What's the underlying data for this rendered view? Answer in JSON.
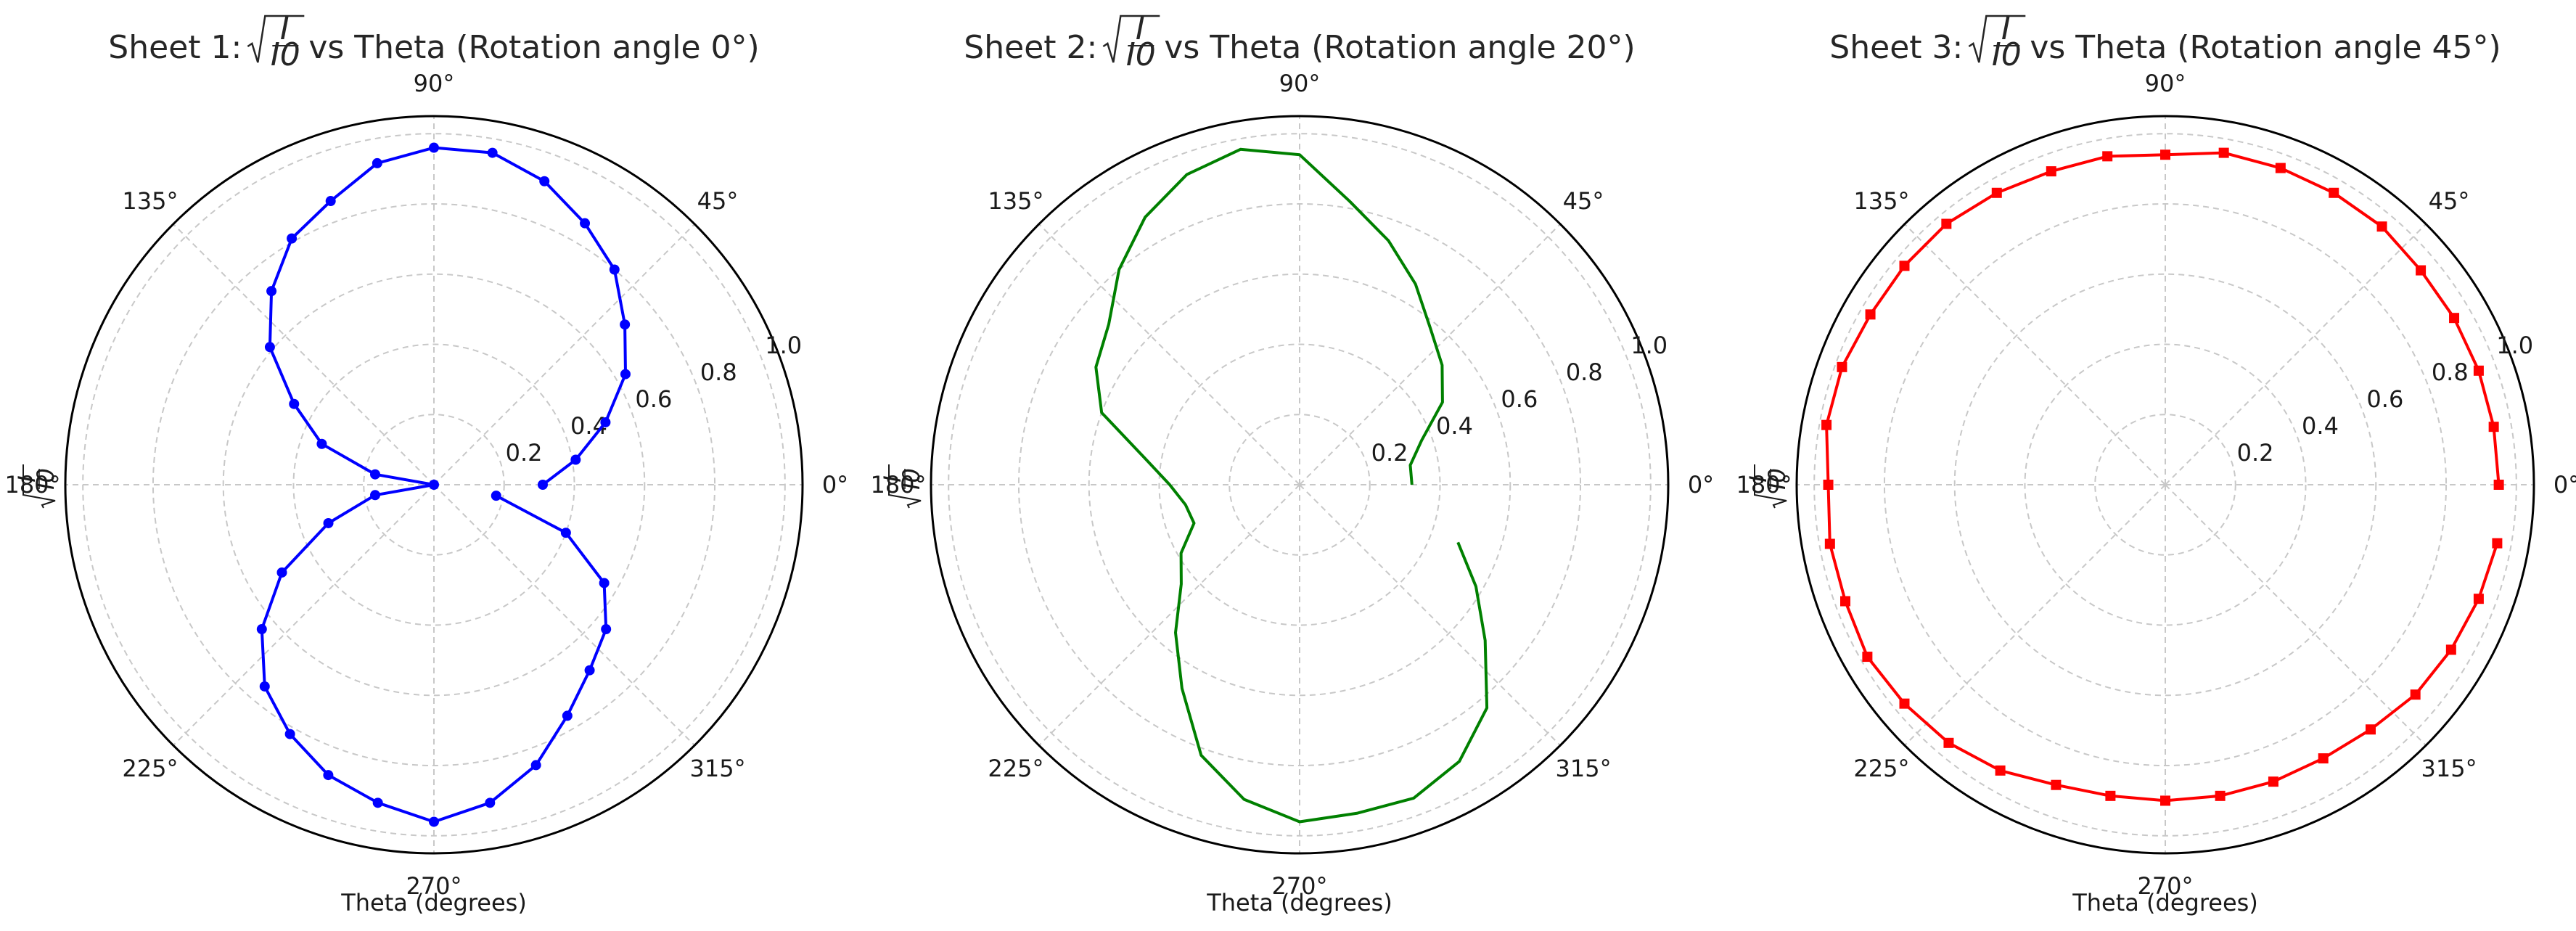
{
  "chart_data": [
    {
      "type": "line",
      "projection": "polar",
      "title_prefix": "Sheet 1: ",
      "title_suffix": " vs Theta (Rotation angle 0°)",
      "title_math": {
        "numerator": "I",
        "denominator": "I0"
      },
      "xlabel": "Theta (degrees)",
      "ylabel_math": {
        "numerator": "I",
        "denominator": "I0"
      },
      "theta_ticks": [
        "0°",
        "45°",
        "90°",
        "135°",
        "180°",
        "225°",
        "270°",
        "315°"
      ],
      "r_ticks": [
        "0.2",
        "0.4",
        "0.6",
        "0.8",
        "1.0"
      ],
      "r_range": [
        0,
        1.05
      ],
      "grid": true,
      "series": [
        {
          "color": "#0000ff",
          "marker": "circle",
          "theta_deg": [
            0,
            10,
            20,
            30,
            40,
            50,
            60,
            70,
            80,
            90,
            100,
            110,
            120,
            130,
            140,
            150,
            160,
            170,
            180,
            190,
            200,
            210,
            220,
            230,
            240,
            250,
            260,
            270,
            280,
            290,
            300,
            310,
            320,
            330,
            340,
            350
          ],
          "r": [
            0.31,
            0.41,
            0.52,
            0.63,
            0.71,
            0.8,
            0.86,
            0.92,
            0.96,
            0.96,
            0.93,
            0.86,
            0.81,
            0.72,
            0.61,
            0.46,
            0.34,
            0.17,
            0.0,
            0.17,
            0.32,
            0.5,
            0.64,
            0.75,
            0.82,
            0.88,
            0.92,
            0.96,
            0.92,
            0.85,
            0.76,
            0.69,
            0.64,
            0.56,
            0.4,
            0.18
          ]
        }
      ]
    },
    {
      "type": "line",
      "projection": "polar",
      "title_prefix": "Sheet 2: ",
      "title_suffix": " vs Theta (Rotation angle 20°)",
      "title_math": {
        "numerator": "I",
        "denominator": "I0"
      },
      "xlabel": "Theta (degrees)",
      "ylabel_math": {
        "numerator": "I",
        "denominator": "I0"
      },
      "theta_ticks": [
        "0°",
        "45°",
        "90°",
        "135°",
        "180°",
        "225°",
        "270°",
        "315°"
      ],
      "r_ticks": [
        "0.2",
        "0.4",
        "0.6",
        "0.8",
        "1.0"
      ],
      "r_range": [
        0,
        1.05
      ],
      "grid": true,
      "series": [
        {
          "color": "#008000",
          "marker": "none",
          "theta_deg": [
            0,
            10,
            20,
            30,
            40,
            50,
            60,
            70,
            80,
            90,
            100,
            110,
            120,
            130,
            140,
            150,
            160,
            170,
            180,
            190,
            200,
            210,
            220,
            230,
            240,
            250,
            260,
            270,
            280,
            290,
            300,
            310,
            320,
            330,
            340
          ],
          "r": [
            0.32,
            0.32,
            0.37,
            0.47,
            0.53,
            0.58,
            0.66,
            0.74,
            0.82,
            0.94,
            0.97,
            0.94,
            0.88,
            0.8,
            0.71,
            0.67,
            0.6,
            0.45,
            0.37,
            0.33,
            0.32,
            0.39,
            0.44,
            0.55,
            0.67,
            0.82,
            0.91,
            0.96,
            0.95,
            0.95,
            0.91,
            0.83,
            0.69,
            0.58,
            0.48
          ]
        }
      ]
    },
    {
      "type": "line",
      "projection": "polar",
      "title_prefix": "Sheet 3: ",
      "title_suffix": " vs Theta (Rotation angle 45°)",
      "title_math": {
        "numerator": "I",
        "denominator": "I0"
      },
      "xlabel": "Theta (degrees)",
      "ylabel_math": {
        "numerator": "I",
        "denominator": "I0"
      },
      "theta_ticks": [
        "0°",
        "45°",
        "90°",
        "135°",
        "180°",
        "225°",
        "270°",
        "315°"
      ],
      "r_ticks": [
        "0.2",
        "0.4",
        "0.6",
        "0.8",
        "1.0"
      ],
      "r_range": [
        0,
        1.05
      ],
      "grid": true,
      "series": [
        {
          "color": "#ff0000",
          "marker": "square",
          "theta_deg": [
            0,
            10,
            20,
            30,
            40,
            50,
            60,
            70,
            80,
            90,
            100,
            110,
            120,
            130,
            140,
            150,
            160,
            170,
            180,
            190,
            200,
            210,
            220,
            230,
            240,
            250,
            260,
            270,
            280,
            290,
            300,
            310,
            320,
            330,
            340,
            350
          ],
          "r": [
            0.95,
            0.95,
            0.95,
            0.95,
            0.95,
            0.96,
            0.96,
            0.96,
            0.96,
            0.94,
            0.95,
            0.95,
            0.96,
            0.97,
            0.97,
            0.97,
            0.98,
            0.98,
            0.96,
            0.97,
            0.97,
            0.98,
            0.97,
            0.96,
            0.94,
            0.91,
            0.9,
            0.9,
            0.9,
            0.9,
            0.9,
            0.91,
            0.93,
            0.94,
            0.95,
            0.96
          ]
        }
      ]
    }
  ]
}
